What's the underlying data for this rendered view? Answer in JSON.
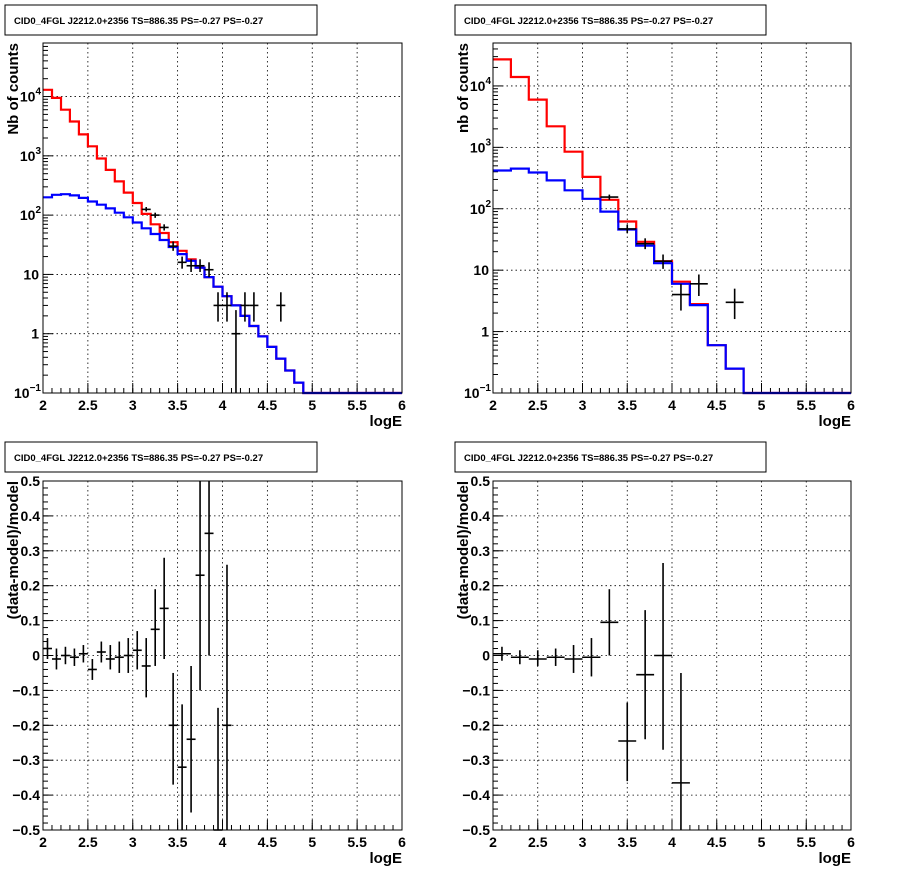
{
  "chart_data": [
    {
      "type": "line",
      "title": "CID0_4FGL J2212.0+2356 TS=886.35 PS=-0.27 PS=-0.27",
      "xlabel": "logE",
      "ylabel": "Nb of counts",
      "xlim": [
        2,
        6
      ],
      "ylim": [
        0.1,
        80000
      ],
      "yscale": "log",
      "grid": true,
      "x_ticks": [
        "2",
        "2.5",
        "3",
        "3.5",
        "4",
        "4.5",
        "5",
        "5.5",
        "6"
      ],
      "y_ticks": [
        {
          "base": "10",
          "exp": "−1",
          "v": 0.1
        },
        {
          "base": "1",
          "exp": "",
          "v": 1
        },
        {
          "base": "10",
          "exp": "",
          "v": 10
        },
        {
          "base": "10",
          "exp": "2",
          "v": 100
        },
        {
          "base": "10",
          "exp": "3",
          "v": 1000
        },
        {
          "base": "10",
          "exp": "4",
          "v": 10000
        }
      ],
      "bin_width": 0.1,
      "series": [
        {
          "color": "#ff0000",
          "style": "step",
          "edges_start": 2.0,
          "values": [
            13000,
            9500,
            6000,
            3800,
            2300,
            1450,
            900,
            580,
            370,
            240,
            160,
            105,
            70,
            50,
            35,
            25,
            18,
            13,
            9,
            6.2,
            4.3,
            3.0,
            2.0,
            1.35,
            0.9,
            0.6,
            0.38,
            0.24,
            0.15,
            0.1,
            0.1,
            0.1,
            0.1,
            0.1,
            0.1,
            0.1,
            0.1,
            0.1,
            0.1,
            0.1
          ]
        },
        {
          "color": "#0000ff",
          "style": "step",
          "edges_start": 2.0,
          "values": [
            200,
            220,
            225,
            215,
            195,
            170,
            150,
            130,
            110,
            92,
            75,
            60,
            48,
            38,
            29,
            22,
            17,
            13,
            9,
            6.2,
            4.3,
            3.0,
            2.0,
            1.35,
            0.9,
            0.6,
            0.38,
            0.24,
            0.15,
            0.1,
            0.1,
            0.1,
            0.1,
            0.1,
            0.1,
            0.1,
            0.1,
            0.1,
            0.1,
            0.1
          ]
        }
      ],
      "points": [
        {
          "x": 3.15,
          "y": 125,
          "ylo": 115,
          "yhi": 137
        },
        {
          "x": 3.25,
          "y": 100,
          "ylo": 90,
          "yhi": 110
        },
        {
          "x": 3.35,
          "y": 62,
          "ylo": 55,
          "yhi": 70
        },
        {
          "x": 3.45,
          "y": 30,
          "ylo": 25,
          "yhi": 36
        },
        {
          "x": 3.55,
          "y": 16,
          "ylo": 12.5,
          "yhi": 20
        },
        {
          "x": 3.65,
          "y": 14,
          "ylo": 11,
          "yhi": 18
        },
        {
          "x": 3.75,
          "y": 14,
          "ylo": 11,
          "yhi": 18
        },
        {
          "x": 3.85,
          "y": 12,
          "ylo": 9,
          "yhi": 16
        },
        {
          "x": 3.95,
          "y": 3,
          "ylo": 1.6,
          "yhi": 5
        },
        {
          "x": 4.05,
          "y": 3,
          "ylo": 1.6,
          "yhi": 5
        },
        {
          "x": 4.15,
          "y": 1,
          "ylo": 0.1,
          "yhi": 2.5
        },
        {
          "x": 4.25,
          "y": 3,
          "ylo": 1.6,
          "yhi": 5
        },
        {
          "x": 4.35,
          "y": 3,
          "ylo": 1.6,
          "yhi": 5
        },
        {
          "x": 4.65,
          "y": 3,
          "ylo": 1.6,
          "yhi": 5
        }
      ]
    },
    {
      "type": "line",
      "title": "CID0_4FGL J2212.0+2356 TS=886.35 PS=-0.27 PS=-0.27",
      "xlabel": "logE",
      "ylabel": "nb of counts",
      "xlim": [
        2,
        6
      ],
      "ylim": [
        0.1,
        50000
      ],
      "yscale": "log",
      "grid": true,
      "x_ticks": [
        "2",
        "2.5",
        "3",
        "3.5",
        "4",
        "4.5",
        "5",
        "5.5",
        "6"
      ],
      "y_ticks": [
        {
          "base": "10",
          "exp": "−1",
          "v": 0.1
        },
        {
          "base": "1",
          "exp": "",
          "v": 1
        },
        {
          "base": "10",
          "exp": "",
          "v": 10
        },
        {
          "base": "10",
          "exp": "2",
          "v": 100
        },
        {
          "base": "10",
          "exp": "3",
          "v": 1000
        },
        {
          "base": "10",
          "exp": "4",
          "v": 10000
        }
      ],
      "bin_width": 0.2,
      "series": [
        {
          "color": "#ff0000",
          "style": "step",
          "edges_start": 2.0,
          "values": [
            27000,
            14000,
            6000,
            2200,
            850,
            330,
            140,
            62,
            29,
            14,
            6.5,
            2.8,
            0.6,
            0.25,
            0.1,
            0.1,
            0.1,
            0.1,
            0.1,
            0.1
          ]
        },
        {
          "color": "#0000ff",
          "style": "step",
          "edges_start": 2.0,
          "values": [
            420,
            450,
            390,
            290,
            200,
            145,
            90,
            46,
            25,
            13,
            6,
            2.7,
            0.6,
            0.25,
            0.1,
            0.1,
            0.1,
            0.1,
            0.1,
            0.1
          ]
        }
      ],
      "points": [
        {
          "x": 3.3,
          "y": 155,
          "ylo": 140,
          "yhi": 170
        },
        {
          "x": 3.5,
          "y": 47,
          "ylo": 40,
          "yhi": 55
        },
        {
          "x": 3.7,
          "y": 27,
          "ylo": 22,
          "yhi": 33
        },
        {
          "x": 3.9,
          "y": 14,
          "ylo": 10.5,
          "yhi": 18
        },
        {
          "x": 4.1,
          "y": 4,
          "ylo": 2.2,
          "yhi": 6
        },
        {
          "x": 4.3,
          "y": 6,
          "ylo": 3.8,
          "yhi": 8.5
        },
        {
          "x": 4.7,
          "y": 3,
          "ylo": 1.6,
          "yhi": 5
        }
      ]
    },
    {
      "type": "scatter",
      "title": "CID0_4FGL J2212.0+2356 TS=886.35 PS=-0.27 PS=-0.27",
      "xlabel": "logE",
      "ylabel": "(data-model)/model",
      "xlim": [
        2,
        6
      ],
      "ylim": [
        -0.5,
        0.5
      ],
      "grid": true,
      "x_ticks": [
        "2",
        "2.5",
        "3",
        "3.5",
        "4",
        "4.5",
        "5",
        "5.5",
        "6"
      ],
      "y_ticks": [
        "−0.5",
        "−0.4",
        "−0.3",
        "−0.2",
        "−0.1",
        "0",
        "0.1",
        "0.2",
        "0.3",
        "0.4",
        "0.5"
      ],
      "xerr": 0.05,
      "points": [
        {
          "x": 2.05,
          "y": 0.02,
          "ylo": -0.01,
          "yhi": 0.05
        },
        {
          "x": 2.15,
          "y": -0.01,
          "ylo": -0.04,
          "yhi": 0.02
        },
        {
          "x": 2.25,
          "y": 0.0,
          "ylo": -0.025,
          "yhi": 0.025
        },
        {
          "x": 2.35,
          "y": -0.005,
          "ylo": -0.03,
          "yhi": 0.02
        },
        {
          "x": 2.45,
          "y": 0.005,
          "ylo": -0.02,
          "yhi": 0.03
        },
        {
          "x": 2.55,
          "y": -0.04,
          "ylo": -0.07,
          "yhi": -0.01
        },
        {
          "x": 2.65,
          "y": 0.01,
          "ylo": -0.02,
          "yhi": 0.04
        },
        {
          "x": 2.75,
          "y": -0.01,
          "ylo": -0.04,
          "yhi": 0.03
        },
        {
          "x": 2.85,
          "y": -0.005,
          "ylo": -0.05,
          "yhi": 0.04
        },
        {
          "x": 2.95,
          "y": 0.0,
          "ylo": -0.05,
          "yhi": 0.05
        },
        {
          "x": 3.05,
          "y": 0.015,
          "ylo": -0.04,
          "yhi": 0.07
        },
        {
          "x": 3.15,
          "y": -0.03,
          "ylo": -0.12,
          "yhi": 0.05
        },
        {
          "x": 3.25,
          "y": 0.075,
          "ylo": -0.03,
          "yhi": 0.19
        },
        {
          "x": 3.35,
          "y": 0.135,
          "ylo": -0.01,
          "yhi": 0.28
        },
        {
          "x": 3.45,
          "y": -0.2,
          "ylo": -0.37,
          "yhi": -0.05
        },
        {
          "x": 3.55,
          "y": -0.32,
          "ylo": -0.5,
          "yhi": -0.14
        },
        {
          "x": 3.65,
          "y": -0.24,
          "ylo": -0.45,
          "yhi": -0.03
        },
        {
          "x": 3.75,
          "y": 0.23,
          "ylo": -0.1,
          "yhi": 0.5
        },
        {
          "x": 3.85,
          "y": 0.35,
          "ylo": 0.0,
          "yhi": 0.5
        },
        {
          "x": 3.95,
          "y": -0.5,
          "ylo": -0.5,
          "yhi": -0.15
        },
        {
          "x": 4.05,
          "y": -0.2,
          "ylo": -0.5,
          "yhi": 0.26
        }
      ]
    },
    {
      "type": "scatter",
      "title": "CID0_4FGL J2212.0+2356 TS=886.35 PS=-0.27 PS=-0.27",
      "xlabel": "logE",
      "ylabel": "(data-model)/model",
      "xlim": [
        2,
        6
      ],
      "ylim": [
        -0.5,
        0.5
      ],
      "grid": true,
      "x_ticks": [
        "2",
        "2.5",
        "3",
        "3.5",
        "4",
        "4.5",
        "5",
        "5.5",
        "6"
      ],
      "y_ticks": [
        "−0.5",
        "−0.4",
        "−0.3",
        "−0.2",
        "−0.1",
        "0",
        "0.1",
        "0.2",
        "0.3",
        "0.4",
        "0.5"
      ],
      "xerr": 0.1,
      "points": [
        {
          "x": 2.1,
          "y": 0.005,
          "ylo": -0.015,
          "yhi": 0.025
        },
        {
          "x": 2.3,
          "y": -0.005,
          "ylo": -0.025,
          "yhi": 0.015
        },
        {
          "x": 2.5,
          "y": -0.01,
          "ylo": -0.03,
          "yhi": 0.015
        },
        {
          "x": 2.7,
          "y": -0.005,
          "ylo": -0.03,
          "yhi": 0.02
        },
        {
          "x": 2.9,
          "y": -0.01,
          "ylo": -0.05,
          "yhi": 0.03
        },
        {
          "x": 3.1,
          "y": -0.005,
          "ylo": -0.06,
          "yhi": 0.05
        },
        {
          "x": 3.3,
          "y": 0.095,
          "ylo": 0.0,
          "yhi": 0.19
        },
        {
          "x": 3.5,
          "y": -0.245,
          "ylo": -0.36,
          "yhi": -0.135
        },
        {
          "x": 3.7,
          "y": -0.055,
          "ylo": -0.24,
          "yhi": 0.13
        },
        {
          "x": 3.9,
          "y": 0.0,
          "ylo": -0.27,
          "yhi": 0.265
        },
        {
          "x": 4.1,
          "y": -0.365,
          "ylo": -0.5,
          "yhi": -0.05
        }
      ]
    }
  ]
}
